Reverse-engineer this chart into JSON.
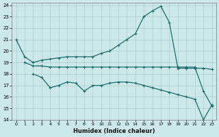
{
  "bg_color": "#cce8ea",
  "grid_color": "#aacfcf",
  "line_color": "#1a6b6b",
  "xlabel": "Humidex (Indice chaleur)",
  "xlim": [
    -0.5,
    23.5
  ],
  "ylim": [
    14,
    24.2
  ],
  "yticks": [
    14,
    15,
    16,
    17,
    18,
    19,
    20,
    21,
    22,
    23,
    24
  ],
  "xticks": [
    0,
    1,
    2,
    3,
    4,
    5,
    6,
    7,
    8,
    9,
    10,
    11,
    12,
    13,
    14,
    15,
    16,
    17,
    18,
    19,
    20,
    21,
    22,
    23
  ],
  "series": [
    {
      "x": [
        1,
        2,
        3,
        4,
        5,
        6,
        7,
        8,
        9,
        10,
        11,
        12,
        13,
        14,
        15,
        16,
        17,
        18,
        19,
        20,
        21,
        22,
        23
      ],
      "y": [
        19.0,
        18.7,
        18.7,
        18.6,
        18.6,
        18.6,
        18.6,
        18.6,
        18.6,
        18.6,
        18.6,
        18.6,
        18.6,
        18.6,
        18.6,
        18.6,
        18.6,
        18.6,
        18.6,
        18.6,
        18.6,
        16.5,
        15.2
      ]
    },
    {
      "x": [
        0,
        1,
        2,
        3,
        4,
        5,
        6,
        7,
        8,
        9,
        10,
        11,
        12,
        13,
        14,
        15,
        16,
        17,
        18,
        19,
        20,
        21,
        22,
        23
      ],
      "y": [
        21.0,
        19.5,
        19.0,
        19.2,
        19.3,
        19.4,
        19.5,
        19.5,
        19.5,
        19.5,
        19.8,
        20.0,
        20.5,
        21.0,
        21.5,
        23.0,
        23.5,
        23.9,
        22.5,
        18.5,
        18.5,
        18.5,
        18.5,
        18.4
      ]
    },
    {
      "x": [
        2,
        3,
        4,
        5,
        6,
        7,
        8,
        9,
        10,
        11,
        12,
        13,
        14,
        15,
        16,
        17,
        18,
        19,
        20,
        21,
        22,
        23
      ],
      "y": [
        18.0,
        17.7,
        16.8,
        17.0,
        17.3,
        17.2,
        16.5,
        17.0,
        17.0,
        17.2,
        17.3,
        17.3,
        17.2,
        17.0,
        16.8,
        16.6,
        16.4,
        16.2,
        16.0,
        15.8,
        14.0,
        15.3
      ]
    }
  ]
}
